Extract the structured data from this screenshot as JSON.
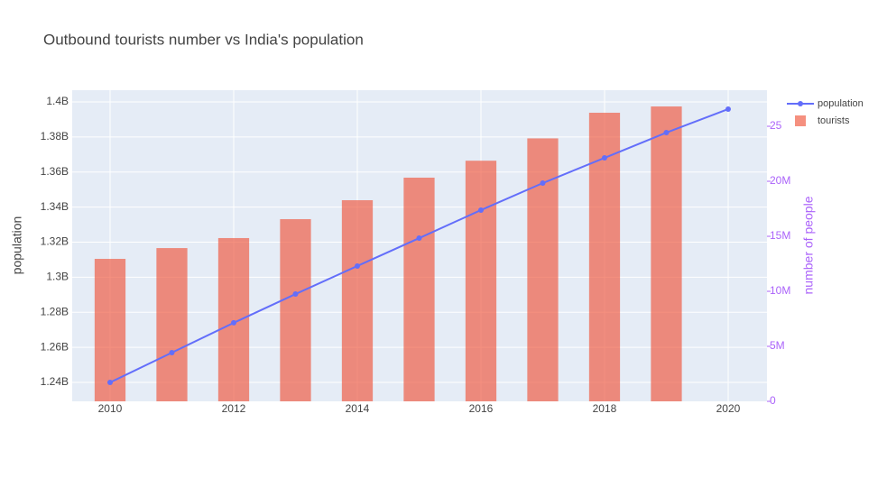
{
  "chart_data": {
    "type": "bar-line",
    "title": "Outbound tourists number vs India's population",
    "y_label": "population",
    "y2_label": "number of people",
    "x": [
      2010,
      2011,
      2012,
      2013,
      2014,
      2015,
      2016,
      2017,
      2018,
      2019,
      2020
    ],
    "xlim": [
      2009.387,
      2020.628
    ],
    "xticks": [
      2010,
      2012,
      2014,
      2016,
      2018,
      2020
    ],
    "ylim": [
      1229200000,
      1406700000
    ],
    "yticks": [
      {
        "value": 1240000000,
        "label": "1.24B"
      },
      {
        "value": 1260000000,
        "label": "1.26B"
      },
      {
        "value": 1280000000,
        "label": "1.28B"
      },
      {
        "value": 1300000000,
        "label": "1.3B"
      },
      {
        "value": 1320000000,
        "label": "1.32B"
      },
      {
        "value": 1340000000,
        "label": "1.34B"
      },
      {
        "value": 1360000000,
        "label": "1.36B"
      },
      {
        "value": 1380000000,
        "label": "1.38B"
      },
      {
        "value": 1400000000,
        "label": "1.4B"
      }
    ],
    "y2lim": [
      0,
      28280000
    ],
    "y2ticks": [
      0,
      {
        "value": 5000000,
        "label": "5M"
      },
      {
        "value": 10000000,
        "label": "10M"
      },
      {
        "value": 15000000,
        "label": "15M"
      },
      {
        "value": 20000000,
        "label": "20M"
      },
      {
        "value": 25000000,
        "label": "25"
      }
    ],
    "grid": true,
    "series": [
      {
        "name": "population",
        "type": "line",
        "color": "#636efa",
        "values": [
          1240000000,
          1257000000,
          1274000000,
          1290400000,
          1306400000,
          1322300000,
          1338300000,
          1353700000,
          1368100000,
          1382500000,
          1395900000
        ]
      },
      {
        "name": "tourists",
        "type": "bar",
        "axis": "y2",
        "color": "#ef553b",
        "values": [
          12950000,
          13930000,
          14840000,
          16560000,
          18280000,
          20330000,
          21870000,
          23900000,
          26230000,
          26800000,
          null
        ]
      }
    ]
  }
}
